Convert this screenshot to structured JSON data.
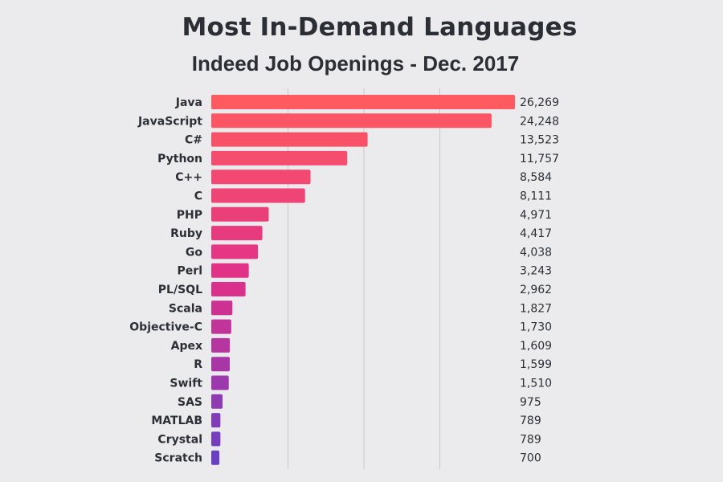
{
  "chart_data": {
    "type": "bar",
    "orientation": "horizontal",
    "title": "Most In-Demand Languages",
    "subtitle": "Indeed Job Openings - Dec. 2017",
    "categories": [
      "Java",
      "JavaScript",
      "C#",
      "Python",
      "C++",
      "C",
      "PHP",
      "Ruby",
      "Go",
      "Perl",
      "PL/SQL",
      "Scala",
      "Objective-C",
      "Apex",
      "R",
      "Swift",
      "SAS",
      "MATLAB",
      "Crystal",
      "Scratch"
    ],
    "values": [
      26269,
      24248,
      13523,
      11757,
      8584,
      8111,
      4971,
      4417,
      4038,
      3243,
      2962,
      1827,
      1730,
      1609,
      1599,
      1510,
      975,
      789,
      789,
      700
    ],
    "value_labels": [
      "26,269",
      "24,248",
      "13,523",
      "11,757",
      "8,584",
      "8,111",
      "4,971",
      "4,417",
      "4,038",
      "3,243",
      "2,962",
      "1,827",
      "1,730",
      "1,609",
      "1,599",
      "1,510",
      "975",
      "789",
      "789",
      "700"
    ],
    "xlim": [
      0,
      26269
    ],
    "grid": true,
    "legend": "none",
    "colors": {
      "top": "#ff5a5f",
      "middle": "#e0308a",
      "bottom": "#6a3fc4"
    }
  }
}
